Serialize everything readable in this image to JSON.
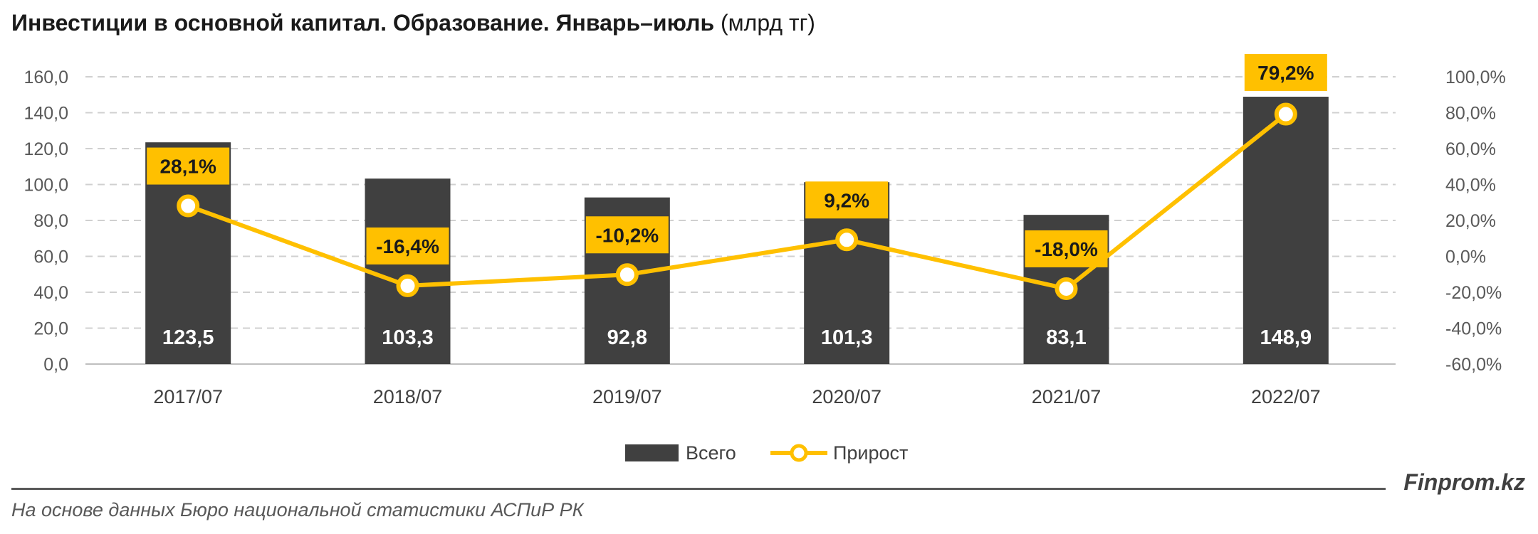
{
  "title": {
    "main": "Инвестиции в основной капитал. Образование. Январь–июль",
    "unit": "(млрд тг)"
  },
  "chart_data": {
    "type": "bar",
    "categories": [
      "2017/07",
      "2018/07",
      "2019/07",
      "2020/07",
      "2021/07",
      "2022/07"
    ],
    "series": [
      {
        "name": "Всего",
        "type": "bar",
        "axis": "left",
        "color": "#404040",
        "values": [
          123.5,
          103.3,
          92.8,
          101.3,
          83.1,
          148.9
        ],
        "labels": [
          "123,5",
          "103,3",
          "92,8",
          "101,3",
          "83,1",
          "148,9"
        ]
      },
      {
        "name": "Прирост",
        "type": "line",
        "axis": "right",
        "color": "#FFC000",
        "values": [
          28.1,
          -16.4,
          -10.2,
          9.2,
          -18.0,
          79.2
        ],
        "labels": [
          "28,1%",
          "-16,4%",
          "-10,2%",
          "9,2%",
          "-18,0%",
          "79,2%"
        ]
      }
    ],
    "y_left": {
      "min": 0,
      "max": 160,
      "ticks": [
        0,
        20,
        40,
        60,
        80,
        100,
        120,
        140,
        160
      ],
      "tick_labels": [
        "0,0",
        "20,0",
        "40,0",
        "60,0",
        "80,0",
        "100,0",
        "120,0",
        "140,0",
        "160,0"
      ]
    },
    "y_right": {
      "min": -60,
      "max": 100,
      "ticks": [
        -60,
        -40,
        -20,
        0,
        20,
        40,
        60,
        80,
        100
      ],
      "tick_labels": [
        "-60,0%",
        "-40,0%",
        "-20,0%",
        "0,0%",
        "20,0%",
        "40,0%",
        "60,0%",
        "80,0%",
        "100,0%"
      ]
    },
    "grid": true,
    "legend": "bottom-center"
  },
  "brand": "Finprom.kz",
  "source": "На основе данных Бюро национальной статистики АСПиР РК"
}
